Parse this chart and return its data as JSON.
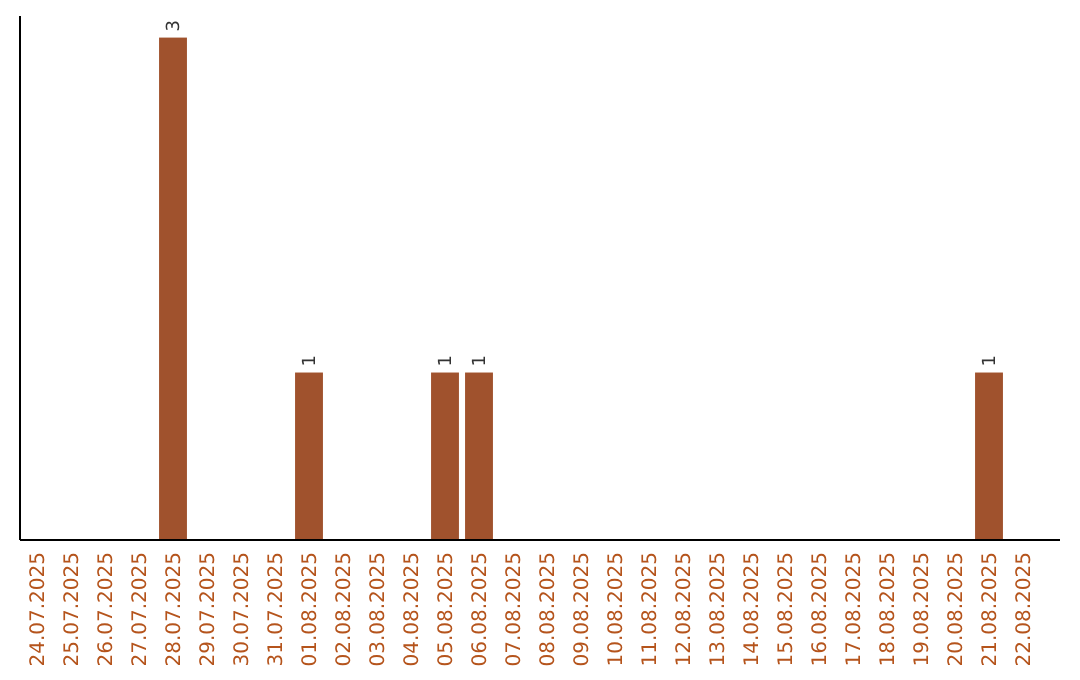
{
  "chart_data": {
    "type": "bar",
    "categories": [
      "24.07.2025",
      "25.07.2025",
      "26.07.2025",
      "27.07.2025",
      "28.07.2025",
      "29.07.2025",
      "30.07.2025",
      "31.07.2025",
      "01.08.2025",
      "02.08.2025",
      "03.08.2025",
      "04.08.2025",
      "05.08.2025",
      "06.08.2025",
      "07.08.2025",
      "08.08.2025",
      "09.08.2025",
      "10.08.2025",
      "11.08.2025",
      "12.08.2025",
      "13.08.2025",
      "14.08.2025",
      "15.08.2025",
      "16.08.2025",
      "17.08.2025",
      "18.08.2025",
      "19.08.2025",
      "20.08.2025",
      "21.08.2025",
      "22.08.2025"
    ],
    "values": [
      0,
      0,
      0,
      0,
      3,
      0,
      0,
      0,
      1,
      0,
      0,
      0,
      1,
      1,
      0,
      0,
      0,
      0,
      0,
      0,
      0,
      0,
      0,
      0,
      0,
      0,
      0,
      0,
      1,
      0
    ],
    "value_labels": [
      null,
      null,
      null,
      null,
      "3",
      null,
      null,
      null,
      "1",
      null,
      null,
      null,
      "1",
      "1",
      null,
      null,
      null,
      null,
      null,
      null,
      null,
      null,
      null,
      null,
      null,
      null,
      null,
      null,
      "1",
      null
    ],
    "color": "#a0522d",
    "tick_labels": "x"
  }
}
